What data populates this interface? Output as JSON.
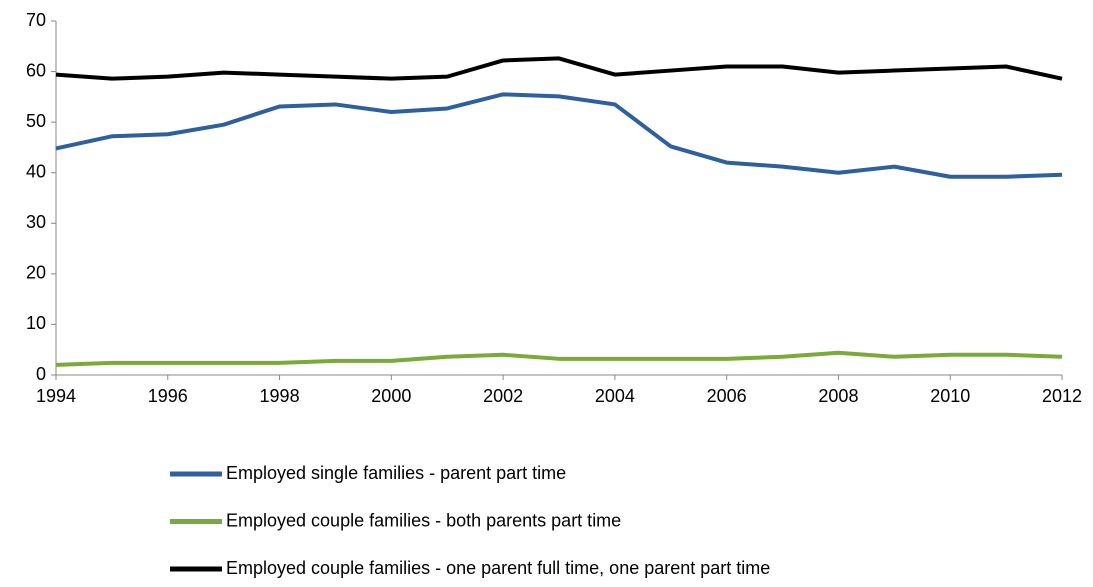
{
  "chart_data": {
    "type": "line",
    "x": [
      1994,
      1995,
      1996,
      1997,
      1998,
      1999,
      2000,
      2001,
      2002,
      2003,
      2004,
      2005,
      2006,
      2007,
      2008,
      2009,
      2010,
      2011,
      2012
    ],
    "series": [
      {
        "name": "Employed single  families  - parent part time",
        "color": "#2e5f9e",
        "values": [
          44.8,
          47.2,
          47.6,
          49.5,
          53.1,
          53.5,
          52,
          52.7,
          55.5,
          55.1,
          53.5,
          45.2,
          42,
          41.2,
          40,
          41.2,
          39.2,
          39.2,
          39.6
        ]
      },
      {
        "name": "Employed couple families - both parents part time",
        "color": "#7aab3a",
        "values": [
          2,
          2.4,
          2.4,
          2.4,
          2.4,
          2.8,
          2.8,
          3.6,
          4,
          3.2,
          3.2,
          3.2,
          3.2,
          3.6,
          4.4,
          3.6,
          4,
          4,
          3.6
        ]
      },
      {
        "name": "Employed couple families - one parent full time, one parent part time",
        "color": "#000000",
        "values": [
          59.4,
          58.6,
          59,
          59.8,
          59.4,
          59,
          58.6,
          59,
          62.2,
          62.6,
          59.4,
          60.2,
          61,
          61,
          59.8,
          60.2,
          60.6,
          61,
          58.6
        ]
      }
    ],
    "xlim": [
      1994,
      2012
    ],
    "xticks": [
      1994,
      1996,
      1998,
      2000,
      2002,
      2004,
      2006,
      2008,
      2010,
      2012
    ],
    "ylim": [
      0,
      70
    ],
    "yticks": [
      0,
      10,
      20,
      30,
      40,
      50,
      60,
      70
    ]
  }
}
